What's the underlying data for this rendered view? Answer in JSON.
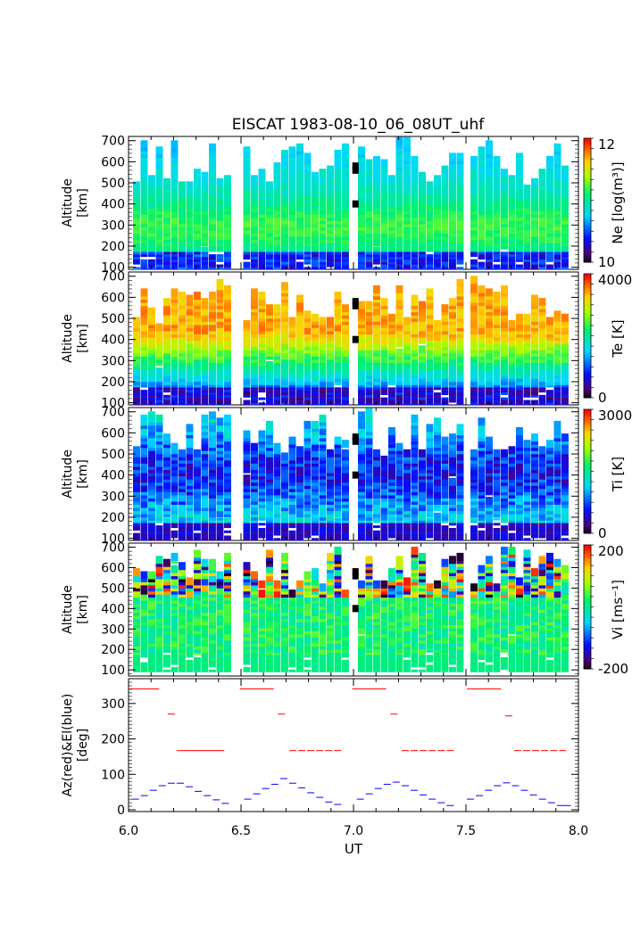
{
  "title": "EISCAT 1983-08-10_06_08UT_uhf",
  "xlabel": "UT",
  "x_ticks": [
    "6.0",
    "6.5",
    "7.0",
    "7.5",
    "8.0"
  ],
  "colors": {
    "azimuth": "#ff0000",
    "elevation": "#0000ff",
    "axis": "#000000"
  },
  "chart_data": [
    {
      "type": "heatmap",
      "name": "Ne",
      "ylabel_1": "Altitude",
      "ylabel_2": "[km]",
      "y_ticks": [
        "100",
        "200",
        "300",
        "400",
        "500",
        "600",
        "700"
      ],
      "colorbar_label": "Ne [log(m³)]",
      "colorbar_ticks": [
        "12",
        "10"
      ],
      "clim": [
        9.5,
        12.5
      ],
      "x_range": [
        6.0,
        8.0
      ],
      "y_range": [
        90,
        720
      ],
      "grid": false
    },
    {
      "type": "heatmap",
      "name": "Te",
      "ylabel_1": "Altitude",
      "ylabel_2": "[km]",
      "y_ticks": [
        "100",
        "200",
        "300",
        "400",
        "500",
        "600",
        "700"
      ],
      "colorbar_label": "Te [K]",
      "colorbar_ticks": [
        "4000",
        "0"
      ],
      "clim": [
        0,
        4000
      ],
      "x_range": [
        6.0,
        8.0
      ],
      "y_range": [
        90,
        720
      ],
      "grid": false
    },
    {
      "type": "heatmap",
      "name": "Ti",
      "ylabel_1": "Altitude",
      "ylabel_2": "[km]",
      "y_ticks": [
        "100",
        "200",
        "300",
        "400",
        "500",
        "600",
        "700"
      ],
      "colorbar_label": "Ti [K]",
      "colorbar_ticks": [
        "3000",
        "0"
      ],
      "clim": [
        0,
        3000
      ],
      "x_range": [
        6.0,
        8.0
      ],
      "y_range": [
        90,
        720
      ],
      "grid": false
    },
    {
      "type": "heatmap",
      "name": "Vi",
      "ylabel_1": "Altitude",
      "ylabel_2": "[km]",
      "y_ticks": [
        "100",
        "200",
        "300",
        "400",
        "500",
        "600",
        "700"
      ],
      "colorbar_label": "Vi [ms⁻¹]",
      "colorbar_ticks": [
        "200",
        "-200"
      ],
      "clim": [
        -200,
        200
      ],
      "x_range": [
        6.0,
        8.0
      ],
      "y_range": [
        70,
        720
      ],
      "grid": false
    },
    {
      "type": "scatter",
      "name": "antenna",
      "ylabel_1": "Az(red)&El(blue)",
      "ylabel_2": "[deg]",
      "y_ticks": [
        "0",
        "100",
        "200",
        "300"
      ],
      "x_range": [
        6.0,
        8.0
      ],
      "ylim": [
        -5,
        370
      ],
      "grid": false,
      "series": [
        {
          "name": "Az(red)",
          "x": [
            6.02,
            6.05,
            6.08,
            6.1,
            6.12,
            6.19,
            6.23,
            6.26,
            6.29,
            6.32,
            6.35,
            6.38,
            6.41,
            6.51,
            6.54,
            6.57,
            6.6,
            6.63,
            6.68,
            6.73,
            6.77,
            6.81,
            6.85,
            6.89,
            6.93,
            7.01,
            7.04,
            7.07,
            7.1,
            7.13,
            7.18,
            7.23,
            7.27,
            7.31,
            7.35,
            7.39,
            7.43,
            7.52,
            7.55,
            7.58,
            7.61,
            7.64,
            7.69,
            7.73,
            7.77,
            7.81,
            7.85,
            7.89,
            7.93
          ],
          "y": [
            341,
            341,
            341,
            341,
            341,
            270,
            167,
            167,
            167,
            167,
            167,
            167,
            167,
            341,
            341,
            341,
            341,
            341,
            270,
            167,
            167,
            167,
            167,
            167,
            167,
            341,
            341,
            341,
            341,
            341,
            270,
            167,
            167,
            167,
            167,
            167,
            167,
            341,
            341,
            341,
            341,
            341,
            265,
            167,
            167,
            167,
            167,
            167,
            167
          ]
        },
        {
          "name": "El(blue)",
          "x": [
            6.03,
            6.07,
            6.11,
            6.15,
            6.19,
            6.23,
            6.27,
            6.31,
            6.35,
            6.39,
            6.43,
            6.53,
            6.57,
            6.61,
            6.65,
            6.69,
            6.73,
            6.77,
            6.81,
            6.85,
            6.89,
            6.93,
            7.03,
            7.07,
            7.11,
            7.15,
            7.19,
            7.23,
            7.27,
            7.31,
            7.35,
            7.39,
            7.43,
            7.52,
            7.56,
            7.6,
            7.64,
            7.68,
            7.72,
            7.76,
            7.8,
            7.84,
            7.88,
            7.92,
            7.95
          ],
          "y": [
            30,
            40,
            55,
            68,
            75,
            75,
            65,
            52,
            40,
            28,
            18,
            30,
            45,
            60,
            72,
            88,
            75,
            62,
            48,
            35,
            22,
            15,
            30,
            45,
            60,
            72,
            78,
            68,
            55,
            42,
            30,
            20,
            12,
            30,
            40,
            55,
            68,
            76,
            68,
            55,
            42,
            30,
            20,
            12,
            12
          ]
        }
      ]
    }
  ]
}
